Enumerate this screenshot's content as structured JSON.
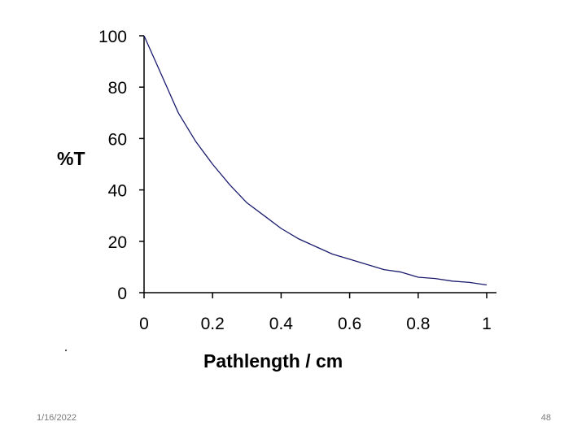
{
  "chart_data": {
    "type": "line",
    "title": "",
    "xlabel": "Pathlength / cm",
    "ylabel": "%T",
    "xlim": [
      0,
      1
    ],
    "ylim": [
      0,
      100
    ],
    "x_ticks": [
      "0",
      "0.2",
      "0.4",
      "0.6",
      "0.8",
      "1"
    ],
    "y_ticks": [
      "0",
      "20",
      "40",
      "60",
      "80",
      "100"
    ],
    "grid": false,
    "legend": "none",
    "series": [
      {
        "color": "#1a1a6e",
        "x": [
          0,
          0.05,
          0.1,
          0.15,
          0.2,
          0.25,
          0.3,
          0.35,
          0.4,
          0.45,
          0.5,
          0.55,
          0.6,
          0.65,
          0.7,
          0.75,
          0.8,
          0.85,
          0.9,
          0.95,
          1.0
        ],
        "y": [
          100,
          85,
          70,
          59,
          50,
          42,
          35,
          30,
          25,
          21,
          18,
          15,
          13,
          11,
          9,
          8,
          6,
          5.5,
          4.5,
          4,
          3
        ]
      }
    ]
  },
  "footer": {
    "date": "1/16/2022",
    "page": "48"
  }
}
